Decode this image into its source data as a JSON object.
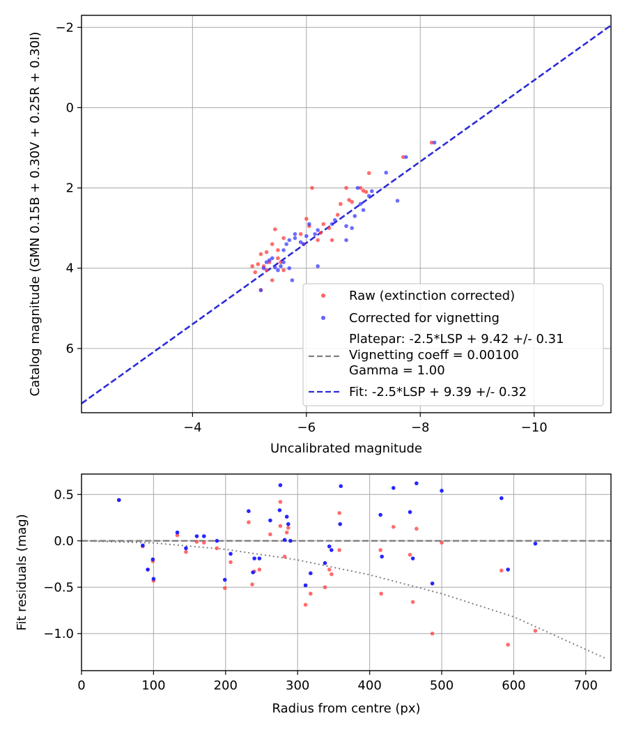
{
  "chart_data": [
    {
      "type": "scatter",
      "xlabel": "Uncalibrated magnitude",
      "ylabel": "Catalog magnitude (GMN 0.15B + 0.30V + 0.25R + 0.30I)",
      "xlim": [
        -2.05,
        -11.35
      ],
      "ylim": [
        7.6,
        -2.3
      ],
      "x_inverted": true,
      "y_inverted": true,
      "xticks": [
        -4,
        -6,
        -8,
        -10
      ],
      "yticks": [
        -2,
        0,
        2,
        4,
        6
      ],
      "grid": true,
      "legend_placement": "lower-right",
      "colors": {
        "raw": "#ff3b3b",
        "corrected": "#3b3bff",
        "vignetting": "#7f7f7f",
        "fit": "#2a2ad8"
      },
      "series": [
        {
          "name": "Raw (extinction corrected)",
          "points": [
            [
              -8.2,
              0.87
            ],
            [
              -7.7,
              1.23
            ],
            [
              -7.1,
              1.63
            ],
            [
              -7.05,
              2.1
            ],
            [
              -7.0,
              2.07
            ],
            [
              -6.95,
              2.0
            ],
            [
              -6.8,
              2.35
            ],
            [
              -6.75,
              2.3
            ],
            [
              -6.7,
              2.0
            ],
            [
              -6.6,
              2.4
            ],
            [
              -6.55,
              2.67
            ],
            [
              -6.45,
              3.3
            ],
            [
              -6.4,
              3.0
            ],
            [
              -6.3,
              2.9
            ],
            [
              -6.25,
              3.12
            ],
            [
              -6.2,
              3.3
            ],
            [
              -6.1,
              2.0
            ],
            [
              -6.05,
              2.95
            ],
            [
              -6.0,
              2.77
            ],
            [
              -5.95,
              3.4
            ],
            [
              -5.9,
              3.15
            ],
            [
              -5.6,
              3.25
            ],
            [
              -5.5,
              3.55
            ],
            [
              -5.45,
              3.03
            ],
            [
              -5.4,
              3.4
            ],
            [
              -5.35,
              3.85
            ],
            [
              -5.3,
              3.6
            ],
            [
              -5.3,
              4.05
            ],
            [
              -5.25,
              3.95
            ],
            [
              -5.2,
              3.65
            ],
            [
              -5.15,
              3.9
            ],
            [
              -5.1,
              4.1
            ],
            [
              -5.5,
              3.75
            ],
            [
              -5.4,
              4.3
            ],
            [
              -5.55,
              3.85
            ],
            [
              -5.2,
              4.54
            ],
            [
              -5.05,
              3.95
            ],
            [
              -5.6,
              4.05
            ]
          ]
        },
        {
          "name": "Corrected for vignetting",
          "points": [
            [
              -8.25,
              0.87
            ],
            [
              -7.75,
              1.23
            ],
            [
              -7.4,
              1.62
            ],
            [
              -7.6,
              2.32
            ],
            [
              -7.15,
              2.08
            ],
            [
              -7.1,
              2.2
            ],
            [
              -7.0,
              2.55
            ],
            [
              -6.95,
              2.4
            ],
            [
              -6.9,
              2.0
            ],
            [
              -6.85,
              2.7
            ],
            [
              -6.7,
              2.95
            ],
            [
              -6.8,
              3.0
            ],
            [
              -6.7,
              3.3
            ],
            [
              -6.5,
              2.8
            ],
            [
              -6.45,
              2.9
            ],
            [
              -6.2,
              3.05
            ],
            [
              -6.15,
              3.15
            ],
            [
              -6.05,
              2.9
            ],
            [
              -6.0,
              3.2
            ],
            [
              -5.95,
              3.4
            ],
            [
              -5.9,
              3.35
            ],
            [
              -5.8,
              3.15
            ],
            [
              -5.8,
              3.25
            ],
            [
              -5.7,
              3.3
            ],
            [
              -5.6,
              3.55
            ],
            [
              -5.55,
              3.95
            ],
            [
              -5.5,
              4.05
            ],
            [
              -5.45,
              3.98
            ],
            [
              -5.4,
              3.75
            ],
            [
              -5.35,
              3.8
            ],
            [
              -5.3,
              3.85
            ],
            [
              -5.25,
              4.0
            ],
            [
              -5.2,
              4.55
            ],
            [
              -5.6,
              3.85
            ],
            [
              -5.75,
              4.3
            ],
            [
              -5.65,
              3.4
            ],
            [
              -6.2,
              3.95
            ],
            [
              -5.7,
              4.0
            ]
          ]
        }
      ],
      "lines": [
        {
          "name": "Platepar: -2.5*LSP + 9.42 +/- 0.31",
          "style": "none",
          "x": [
            -2.05,
            -11.35
          ],
          "y": [
            7.37,
            -2.05
          ]
        },
        {
          "name": "Vignetting coeff = 0.00100\nGamma = 1.00",
          "style": "dashed-gray",
          "x": [],
          "y": []
        },
        {
          "name": "Fit: -2.5*LSP + 9.39 +/- 0.32",
          "style": "dashed-blue",
          "x": [
            -2.05,
            -11.35
          ],
          "y": [
            7.37,
            -2.05
          ]
        }
      ]
    },
    {
      "type": "scatter",
      "xlabel": "Radius from centre (px)",
      "ylabel": "Fit residuals (mag)",
      "xlim": [
        0,
        735
      ],
      "ylim": [
        -1.4,
        0.72
      ],
      "xticks": [
        0,
        100,
        200,
        300,
        400,
        500,
        600,
        700
      ],
      "yticks": [
        0.5,
        0.0,
        -0.5,
        -1.0
      ],
      "grid": true,
      "series": [
        {
          "name": "Raw (extinction corrected)",
          "points": [
            [
              52,
              0.44
            ],
            [
              85,
              -0.06
            ],
            [
              92,
              -0.31
            ],
            [
              99,
              -0.22
            ],
            [
              100,
              -0.43
            ],
            [
              133,
              0.06
            ],
            [
              145,
              -0.12
            ],
            [
              160,
              -0.01
            ],
            [
              170,
              -0.02
            ],
            [
              188,
              -0.08
            ],
            [
              199,
              -0.51
            ],
            [
              207,
              -0.23
            ],
            [
              232,
              0.2
            ],
            [
              237,
              -0.47
            ],
            [
              240,
              -0.33
            ],
            [
              247,
              -0.31
            ],
            [
              262,
              0.07
            ],
            [
              276,
              0.42
            ],
            [
              276,
              0.16
            ],
            [
              282,
              -0.17
            ],
            [
              285,
              0.09
            ],
            [
              287,
              0.14
            ],
            [
              311,
              -0.69
            ],
            [
              318,
              -0.57
            ],
            [
              338,
              -0.5
            ],
            [
              344,
              -0.31
            ],
            [
              347,
              -0.36
            ],
            [
              358,
              0.3
            ],
            [
              358,
              -0.1
            ],
            [
              415,
              -0.1
            ],
            [
              416,
              -0.57
            ],
            [
              433,
              0.15
            ],
            [
              456,
              -0.15
            ],
            [
              460,
              -0.66
            ],
            [
              465,
              0.13
            ],
            [
              487,
              -1.0
            ],
            [
              500,
              -0.02
            ],
            [
              583,
              -0.32
            ],
            [
              592,
              -1.12
            ],
            [
              630,
              -0.97
            ]
          ]
        },
        {
          "name": "Corrected for vignetting",
          "points": [
            [
              52,
              0.44
            ],
            [
              85,
              -0.05
            ],
            [
              92,
              -0.31
            ],
            [
              99,
              -0.2
            ],
            [
              100,
              -0.41
            ],
            [
              133,
              0.09
            ],
            [
              145,
              -0.08
            ],
            [
              160,
              0.05
            ],
            [
              170,
              0.05
            ],
            [
              188,
              0.0
            ],
            [
              199,
              -0.42
            ],
            [
              207,
              -0.14
            ],
            [
              232,
              0.32
            ],
            [
              238,
              -0.34
            ],
            [
              240,
              -0.19
            ],
            [
              247,
              -0.19
            ],
            [
              262,
              0.22
            ],
            [
              276,
              0.6
            ],
            [
              275,
              0.33
            ],
            [
              282,
              0.01
            ],
            [
              285,
              0.26
            ],
            [
              287,
              0.18
            ],
            [
              290,
              0.0
            ],
            [
              311,
              -0.48
            ],
            [
              318,
              -0.35
            ],
            [
              338,
              -0.24
            ],
            [
              344,
              -0.06
            ],
            [
              347,
              -0.1
            ],
            [
              360,
              0.59
            ],
            [
              359,
              0.18
            ],
            [
              415,
              0.28
            ],
            [
              417,
              -0.17
            ],
            [
              433,
              0.57
            ],
            [
              456,
              0.31
            ],
            [
              460,
              -0.19
            ],
            [
              465,
              0.62
            ],
            [
              487,
              -0.46
            ],
            [
              500,
              0.54
            ],
            [
              583,
              0.46
            ],
            [
              592,
              -0.31
            ],
            [
              630,
              -0.03
            ]
          ]
        }
      ],
      "lines": [
        {
          "name": "zero-line",
          "style": "dashed-gray",
          "x": [
            0,
            735
          ],
          "y": [
            0,
            0
          ]
        },
        {
          "name": "vignetting-model",
          "style": "dotted-gray",
          "x": [
            0,
            100,
            200,
            300,
            400,
            500,
            600,
            728
          ],
          "y": [
            0,
            -0.023,
            -0.092,
            -0.206,
            -0.366,
            -0.57,
            -0.82,
            -1.27
          ]
        }
      ]
    }
  ]
}
